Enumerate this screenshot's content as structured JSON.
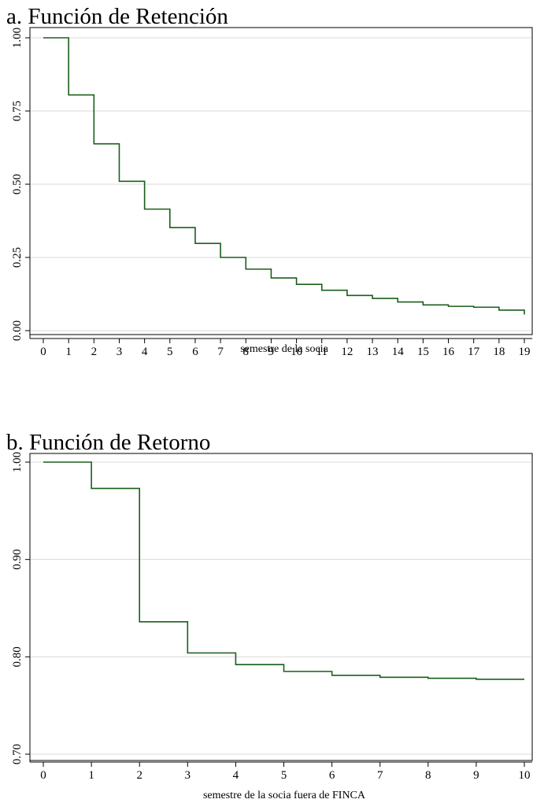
{
  "chart_data": [
    {
      "type": "line",
      "step": true,
      "title": "a. Función de Retención",
      "xlabel": "semestre de la socia",
      "ylabel": "",
      "xlim": [
        0,
        19
      ],
      "ylim": [
        0,
        1
      ],
      "xticks": [
        "0",
        "1",
        "2",
        "3",
        "4",
        "5",
        "6",
        "7",
        "8",
        "9",
        "10",
        "11",
        "12",
        "13",
        "14",
        "15",
        "16",
        "17",
        "18",
        "19"
      ],
      "yticks": [
        "0.00",
        "0.25",
        "0.50",
        "0.75",
        "1.00"
      ],
      "grid": true,
      "color": "#1a5e1a",
      "series": [
        {
          "x": [
            0,
            1,
            2,
            3,
            4,
            5,
            6,
            7,
            8,
            9,
            10,
            11,
            12,
            13,
            14,
            15,
            16,
            17,
            18,
            19
          ],
          "values": [
            1.0,
            0.805,
            0.638,
            0.51,
            0.415,
            0.352,
            0.298,
            0.25,
            0.21,
            0.18,
            0.158,
            0.138,
            0.12,
            0.11,
            0.098,
            0.088,
            0.083,
            0.08,
            0.07,
            0.055
          ]
        }
      ]
    },
    {
      "type": "line",
      "step": true,
      "title": "b. Función de Retorno",
      "xlabel": "semestre de la socia fuera de FINCA",
      "ylabel": "",
      "xlim": [
        0,
        10
      ],
      "ylim": [
        0.7,
        1.0
      ],
      "xticks": [
        "0",
        "1",
        "2",
        "3",
        "4",
        "5",
        "6",
        "7",
        "8",
        "9",
        "10"
      ],
      "yticks": [
        "0.70",
        "0.80",
        "0.90",
        "1.00"
      ],
      "grid": true,
      "color": "#1a5e1a",
      "series": [
        {
          "x": [
            0,
            1,
            2,
            3,
            4,
            5,
            6,
            7,
            8,
            9,
            10
          ],
          "values": [
            1.0,
            0.973,
            0.836,
            0.804,
            0.792,
            0.785,
            0.781,
            0.779,
            0.778,
            0.777,
            0.777
          ]
        }
      ]
    }
  ]
}
